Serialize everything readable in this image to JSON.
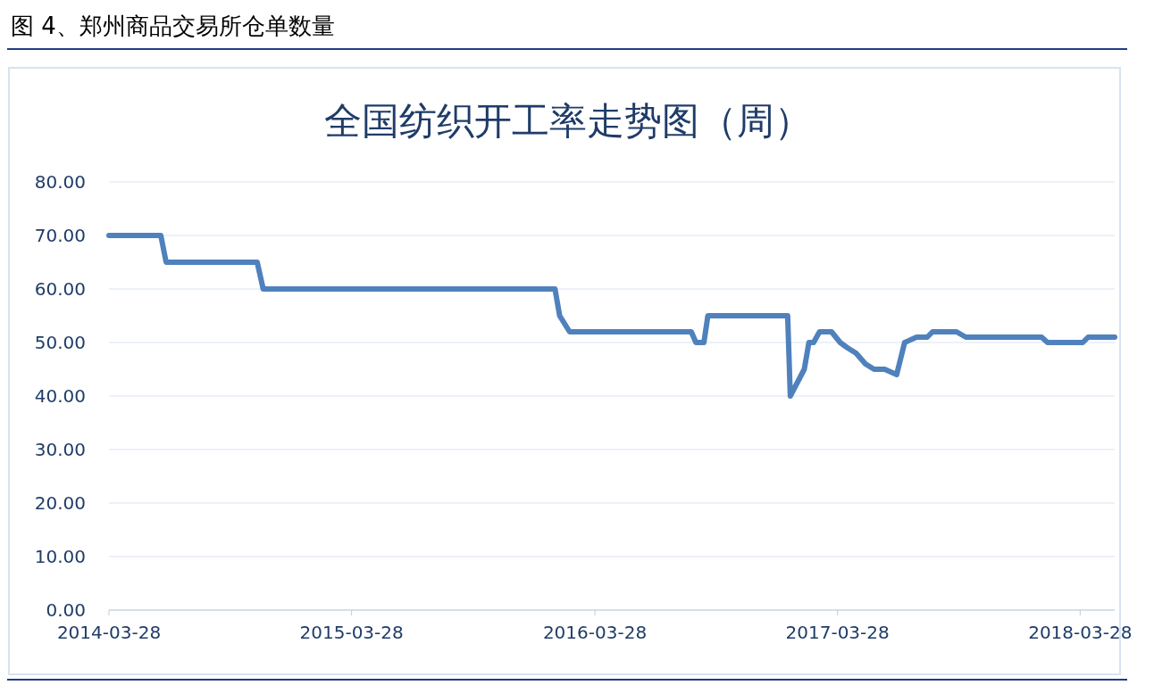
{
  "chart_data": {
    "type": "line",
    "title": "全国纺织开工率走势图（周）",
    "annotations": [
      "图 4、郑州商品交易所仓单数量"
    ],
    "x": [
      "2014-03-28",
      "2014-06-14",
      "2014-06-22",
      "2014-11-06",
      "2014-11-15",
      "2016-01-28",
      "2016-02-04",
      "2016-02-19",
      "2016-08-20",
      "2016-08-27",
      "2016-09-08",
      "2016-09-14",
      "2017-01-12",
      "2017-01-16",
      "2017-02-06",
      "2017-02-13",
      "2017-02-20",
      "2017-03-01",
      "2017-03-19",
      "2017-04-01",
      "2017-04-12",
      "2017-04-25",
      "2017-05-09",
      "2017-05-22",
      "2017-06-07",
      "2017-06-25",
      "2017-07-07",
      "2017-07-25",
      "2017-08-10",
      "2017-08-18",
      "2017-09-23",
      "2017-10-07",
      "2018-01-29",
      "2018-02-07",
      "2018-04-01",
      "2018-04-09",
      "2018-05-19"
    ],
    "series": [
      {
        "color": "#4f81bd",
        "values": [
          70,
          70,
          65,
          65,
          60,
          60,
          55,
          52,
          52,
          50,
          50,
          55,
          55,
          40,
          45,
          50,
          50,
          52,
          52,
          50,
          49,
          48,
          46,
          45,
          45,
          44,
          50,
          51,
          51,
          52,
          52,
          51,
          51,
          50,
          50,
          51,
          51
        ]
      }
    ],
    "xlim": [
      "2014-03-28",
      "2018-05-19"
    ],
    "xticks": [
      {
        "value": "2014-03-28",
        "label": "2014-03-28"
      },
      {
        "value": "2015-03-28",
        "label": "2015-03-28"
      },
      {
        "value": "2016-03-28",
        "label": "2016-03-28"
      },
      {
        "value": "2017-03-28",
        "label": "2017-03-28"
      },
      {
        "value": "2018-03-28",
        "label": "2018-03-28"
      }
    ],
    "ylim": [
      0,
      80
    ],
    "yticks": [
      {
        "value": 0,
        "label": "0.00"
      },
      {
        "value": 10,
        "label": "10.00"
      },
      {
        "value": 20,
        "label": "20.00"
      },
      {
        "value": 30,
        "label": "30.00"
      },
      {
        "value": 40,
        "label": "40.00"
      },
      {
        "value": 50,
        "label": "50.00"
      },
      {
        "value": 60,
        "label": "60.00"
      },
      {
        "value": 70,
        "label": "70.00"
      },
      {
        "value": 80,
        "label": "80.00"
      }
    ],
    "grid": "y",
    "marker": "none",
    "line_style": "solid"
  }
}
